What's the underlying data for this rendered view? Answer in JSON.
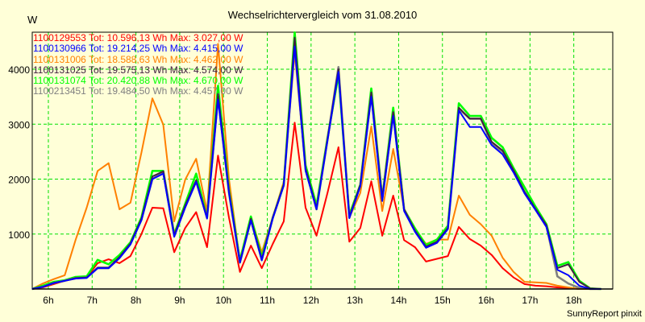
{
  "chart_data": {
    "type": "line",
    "title": "Wechselrichtervergleich vom 31.08.2010",
    "ylabel": "W",
    "xlabel": "",
    "x_start_hour": 5.625,
    "x_step_hour": 0.25,
    "xlim": [
      5.632,
      18.89
    ],
    "ylim": [
      0,
      4674
    ],
    "yticks": [
      1000,
      2000,
      3000,
      4000
    ],
    "ytick_labels": [
      "1000",
      "2000",
      "3000",
      "4000"
    ],
    "xticks": [
      6,
      7,
      8,
      9,
      10,
      11,
      12,
      13,
      14,
      15,
      16,
      17,
      18
    ],
    "xtick_labels": [
      "6h",
      "7h",
      "8h",
      "9h",
      "10h",
      "11h",
      "12h",
      "13h",
      "14h",
      "15h",
      "16h",
      "17h",
      "18h"
    ],
    "grid": true,
    "legend_placement": "top-left",
    "series": [
      {
        "name": "1100129553",
        "legend": "1100129553 Tot: 10.596,13 Wh Max: 3.027,00 W",
        "color": "#ff0000",
        "values": [
          0,
          30,
          90,
          150,
          190,
          210,
          470,
          540,
          470,
          600,
          1000,
          1480,
          1470,
          670,
          1110,
          1400,
          760,
          2430,
          1300,
          310,
          790,
          380,
          820,
          1230,
          3027,
          1480,
          970,
          1750,
          2580,
          860,
          1110,
          1960,
          970,
          1700,
          890,
          760,
          500,
          550,
          600,
          1130,
          910,
          790,
          620,
          380,
          210,
          90,
          60,
          50,
          30,
          20,
          0,
          0,
          0
        ]
      },
      {
        "name": "1100131006",
        "legend": "1100131006 Tot: 18.588,63 Wh Max: 4.462,00 W",
        "color": "#ff8000",
        "values": [
          0,
          100,
          180,
          250,
          900,
          1480,
          2150,
          2290,
          1450,
          1570,
          2480,
          3470,
          2990,
          1230,
          1990,
          2370,
          1410,
          4462,
          2000,
          500,
          1300,
          670,
          1300,
          1950,
          4300,
          2200,
          1500,
          2700,
          3900,
          1300,
          1750,
          2960,
          1420,
          2550,
          1450,
          1080,
          820,
          900,
          900,
          1700,
          1350,
          1180,
          970,
          570,
          310,
          130,
          120,
          110,
          60,
          30,
          0,
          0,
          0
        ]
      },
      {
        "name": "1100131074",
        "legend": "1100131074 Tot: 20.420,88 Wh Max: 4.670,00 W",
        "color": "#00ff00",
        "values": [
          0,
          60,
          130,
          160,
          220,
          230,
          530,
          450,
          620,
          850,
          1300,
          2150,
          2150,
          1000,
          1550,
          2100,
          1300,
          3700,
          1800,
          520,
          1320,
          580,
          1300,
          1900,
          4670,
          2250,
          1520,
          2750,
          3900,
          1350,
          1900,
          3650,
          1650,
          3300,
          1450,
          1100,
          800,
          900,
          1150,
          3380,
          3150,
          3150,
          2750,
          2580,
          2200,
          1850,
          1500,
          1180,
          420,
          490,
          150,
          10,
          0
        ]
      },
      {
        "name": "1100213451",
        "legend": "1100213451 Tot: 19.484,50 Wh Max: 4.457,00 W",
        "color": "#808080",
        "values": [
          0,
          40,
          110,
          150,
          200,
          210,
          380,
          380,
          570,
          820,
          1260,
          2000,
          2140,
          970,
          1500,
          1960,
          1300,
          3500,
          1750,
          480,
          1260,
          530,
          1300,
          1890,
          4457,
          2180,
          1450,
          2720,
          4040,
          1300,
          1890,
          3550,
          1640,
          3200,
          1450,
          1050,
          760,
          850,
          1100,
          3280,
          3100,
          3100,
          2650,
          2500,
          2150,
          1750,
          1450,
          1150,
          230,
          100,
          20,
          0,
          0
        ]
      },
      {
        "name": "1100131025",
        "legend": "1100131025 Tot: 19.575,13 Wh Max: 4.574,00 W",
        "color": "#402040",
        "values": [
          0,
          40,
          110,
          150,
          200,
          210,
          390,
          390,
          580,
          830,
          1280,
          2050,
          2140,
          980,
          1520,
          1980,
          1300,
          3550,
          1780,
          490,
          1280,
          540,
          1300,
          1900,
          4574,
          2200,
          1470,
          2730,
          4000,
          1310,
          1900,
          3580,
          1650,
          3220,
          1450,
          1060,
          770,
          860,
          1110,
          3300,
          3100,
          3100,
          2680,
          2520,
          2160,
          1770,
          1460,
          1160,
          380,
          450,
          130,
          10,
          0
        ]
      },
      {
        "name": "1100130966",
        "legend": "1100130966 Tot: 19.214,25 Wh Max: 4.415,00 W",
        "color": "#0000ff",
        "values": [
          0,
          40,
          110,
          150,
          190,
          200,
          380,
          380,
          560,
          810,
          1250,
          2000,
          2100,
          950,
          1480,
          1950,
          1280,
          3450,
          1750,
          480,
          1250,
          520,
          1280,
          1880,
          4415,
          2150,
          1450,
          2700,
          3950,
          1290,
          1870,
          3500,
          1600,
          3150,
          1420,
          1040,
          750,
          840,
          1090,
          3250,
          2950,
          2950,
          2620,
          2450,
          2120,
          1740,
          1440,
          1130,
          350,
          250,
          60,
          0,
          0
        ]
      }
    ],
    "legend_order": [
      0,
      5,
      1,
      4,
      2,
      3
    ]
  },
  "footer": "SunnyReport pinxit",
  "colors": {
    "background": "#ffffd8",
    "grid": "#00e000",
    "axis": "#000000"
  }
}
